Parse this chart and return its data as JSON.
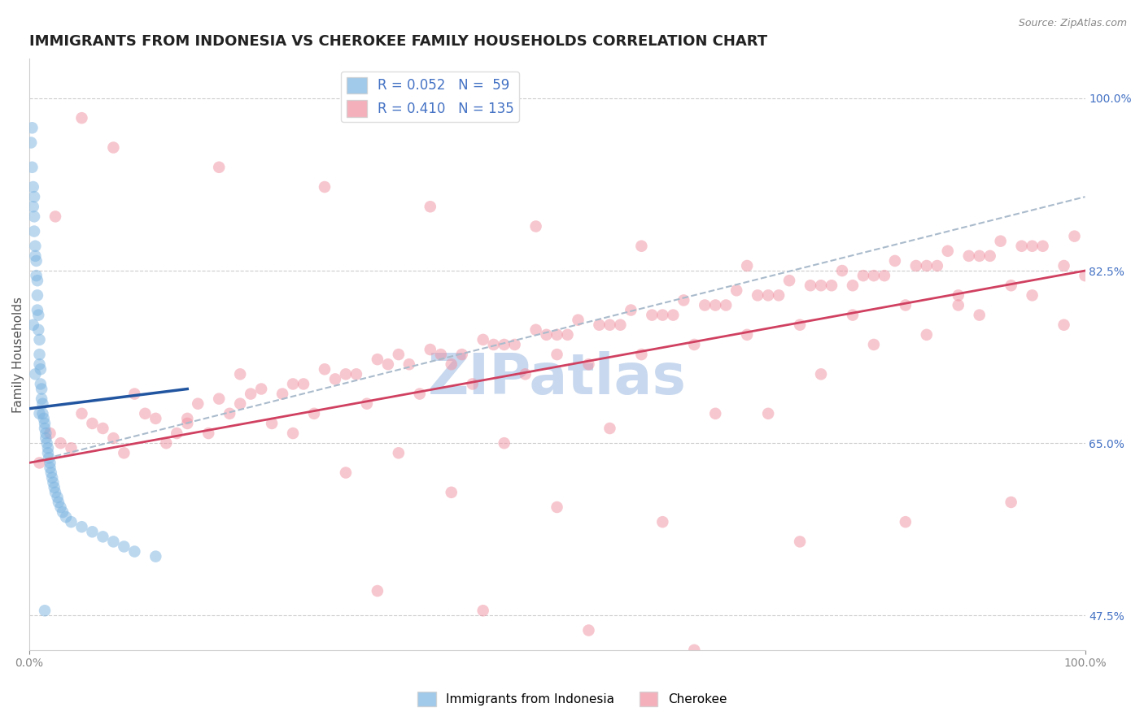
{
  "title": "IMMIGRANTS FROM INDONESIA VS CHEROKEE FAMILY HOUSEHOLDS CORRELATION CHART",
  "source": "Source: ZipAtlas.com",
  "ylabel": "Family Households",
  "xlim": [
    0.0,
    100.0
  ],
  "ylim": [
    44.0,
    104.0
  ],
  "ytick_values": [
    47.5,
    65.0,
    82.5,
    100.0
  ],
  "xtick_values": [
    0.0,
    100.0
  ],
  "watermark": "ZIPatlas",
  "blue_scatter_x": [
    0.2,
    0.3,
    0.3,
    0.4,
    0.4,
    0.5,
    0.5,
    0.5,
    0.6,
    0.6,
    0.7,
    0.7,
    0.8,
    0.8,
    0.8,
    0.9,
    0.9,
    1.0,
    1.0,
    1.0,
    1.1,
    1.1,
    1.2,
    1.2,
    1.3,
    1.3,
    1.4,
    1.5,
    1.5,
    1.6,
    1.6,
    1.7,
    1.8,
    1.8,
    1.9,
    2.0,
    2.0,
    2.1,
    2.2,
    2.3,
    2.4,
    2.5,
    2.7,
    2.8,
    3.0,
    3.2,
    3.5,
    4.0,
    5.0,
    6.0,
    7.0,
    8.0,
    9.0,
    10.0,
    12.0,
    0.4,
    0.6,
    1.0,
    1.5
  ],
  "blue_scatter_y": [
    95.5,
    93.0,
    97.0,
    91.0,
    89.0,
    90.0,
    88.0,
    86.5,
    85.0,
    84.0,
    83.5,
    82.0,
    81.5,
    80.0,
    78.5,
    78.0,
    76.5,
    75.5,
    74.0,
    73.0,
    72.5,
    71.0,
    70.5,
    69.5,
    69.0,
    68.0,
    67.5,
    67.0,
    66.5,
    66.0,
    65.5,
    65.0,
    64.5,
    64.0,
    63.5,
    63.0,
    62.5,
    62.0,
    61.5,
    61.0,
    60.5,
    60.0,
    59.5,
    59.0,
    58.5,
    58.0,
    57.5,
    57.0,
    56.5,
    56.0,
    55.5,
    55.0,
    54.5,
    54.0,
    53.5,
    77.0,
    72.0,
    68.0,
    48.0
  ],
  "pink_scatter_x": [
    2.0,
    5.0,
    10.0,
    15.0,
    20.0,
    25.0,
    30.0,
    35.0,
    40.0,
    45.0,
    50.0,
    55.0,
    60.0,
    65.0,
    70.0,
    75.0,
    80.0,
    85.0,
    90.0,
    95.0,
    3.0,
    7.0,
    12.0,
    18.0,
    22.0,
    28.0,
    33.0,
    38.0,
    43.0,
    48.0,
    52.0,
    57.0,
    62.0,
    67.0,
    72.0,
    77.0,
    82.0,
    87.0,
    92.0,
    98.0,
    4.0,
    8.0,
    14.0,
    19.0,
    24.0,
    29.0,
    34.0,
    39.0,
    44.0,
    49.0,
    54.0,
    59.0,
    64.0,
    69.0,
    74.0,
    79.0,
    84.0,
    89.0,
    94.0,
    99.0,
    6.0,
    11.0,
    16.0,
    21.0,
    26.0,
    31.0,
    36.0,
    41.0,
    46.0,
    51.0,
    56.0,
    61.0,
    66.0,
    71.0,
    76.0,
    81.0,
    86.0,
    91.0,
    96.0,
    1.0,
    9.0,
    13.0,
    17.0,
    23.0,
    27.0,
    32.0,
    37.0,
    42.0,
    47.0,
    53.0,
    58.0,
    63.0,
    68.0,
    73.0,
    78.0,
    83.0,
    88.0,
    93.0,
    100.0,
    40.0,
    50.0,
    60.0,
    70.0,
    80.0,
    90.0,
    30.0,
    45.0,
    55.0,
    65.0,
    75.0,
    85.0,
    95.0,
    20.0,
    35.0,
    50.0,
    25.0,
    15.0,
    5.0,
    2.5,
    8.0,
    18.0,
    28.0,
    38.0,
    48.0,
    58.0,
    68.0,
    78.0,
    88.0,
    98.0,
    33.0,
    43.0,
    53.0,
    63.0,
    73.0,
    83.0,
    93.0
  ],
  "pink_scatter_y": [
    66.0,
    68.0,
    70.0,
    67.0,
    69.0,
    71.0,
    72.0,
    74.0,
    73.0,
    75.0,
    76.0,
    77.0,
    78.0,
    79.0,
    80.0,
    81.0,
    82.0,
    83.0,
    84.0,
    85.0,
    65.0,
    66.5,
    67.5,
    69.5,
    70.5,
    72.5,
    73.5,
    74.5,
    75.5,
    76.5,
    77.5,
    78.5,
    79.5,
    80.5,
    81.5,
    82.5,
    83.5,
    84.5,
    85.5,
    83.0,
    64.5,
    65.5,
    66.0,
    68.0,
    70.0,
    71.5,
    73.0,
    74.0,
    75.0,
    76.0,
    77.0,
    78.0,
    79.0,
    80.0,
    81.0,
    82.0,
    83.0,
    84.0,
    85.0,
    86.0,
    67.0,
    68.0,
    69.0,
    70.0,
    71.0,
    72.0,
    73.0,
    74.0,
    75.0,
    76.0,
    77.0,
    78.0,
    79.0,
    80.0,
    81.0,
    82.0,
    83.0,
    84.0,
    85.0,
    63.0,
    64.0,
    65.0,
    66.0,
    67.0,
    68.0,
    69.0,
    70.0,
    71.0,
    72.0,
    73.0,
    74.0,
    75.0,
    76.0,
    77.0,
    78.0,
    79.0,
    80.0,
    81.0,
    82.0,
    60.0,
    58.5,
    57.0,
    68.0,
    75.0,
    78.0,
    62.0,
    65.0,
    66.5,
    68.0,
    72.0,
    76.0,
    80.0,
    72.0,
    64.0,
    74.0,
    66.0,
    67.5,
    98.0,
    88.0,
    95.0,
    93.0,
    91.0,
    89.0,
    87.0,
    85.0,
    83.0,
    81.0,
    79.0,
    77.0,
    50.0,
    48.0,
    46.0,
    44.0,
    55.0,
    57.0,
    59.0
  ],
  "blue_line_x": [
    0.0,
    15.0
  ],
  "blue_line_y": [
    68.5,
    70.5
  ],
  "dashed_line_x": [
    0.0,
    100.0
  ],
  "dashed_line_y": [
    63.0,
    90.0
  ],
  "pink_line_x": [
    0.0,
    100.0
  ],
  "pink_line_y": [
    63.0,
    82.5
  ],
  "background_color": "#ffffff",
  "scatter_alpha": 0.5,
  "scatter_size": 110,
  "blue_color": "#7ab3e0",
  "pink_color": "#f090a0",
  "blue_line_color": "#2255a0",
  "pink_line_color": "#d04060",
  "dashed_line_color": "#aabbcc",
  "grid_color": "#cccccc",
  "title_fontsize": 13,
  "axis_label_fontsize": 11,
  "tick_fontsize": 10,
  "watermark_color": "#c8d8ee",
  "watermark_fontsize": 50
}
